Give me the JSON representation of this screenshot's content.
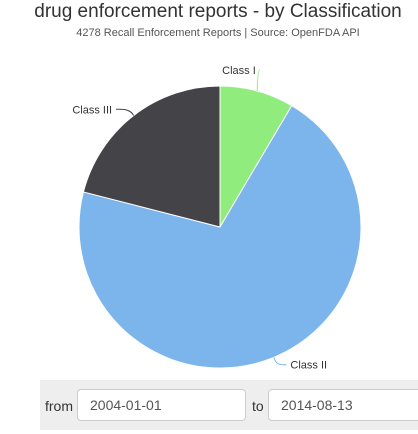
{
  "chart_data": {
    "type": "pie",
    "title": "drug enforcement reports - by Classification",
    "subtitle": "4278 Recall Enforcement Reports | Source: OpenFDA API",
    "start_angle_deg": 90,
    "direction": "clockwise",
    "slices": [
      {
        "label": "Class I",
        "value": 8.5,
        "color": "#90ed7d"
      },
      {
        "label": "Class II",
        "value": 70.5,
        "color": "#7cb5ec"
      },
      {
        "label": "Class III",
        "value": 21.0,
        "color": "#434348"
      }
    ]
  },
  "date_range": {
    "from_label": "from",
    "from_value": "2004-01-01",
    "to_label": "to",
    "to_value": "2014-08-13"
  }
}
